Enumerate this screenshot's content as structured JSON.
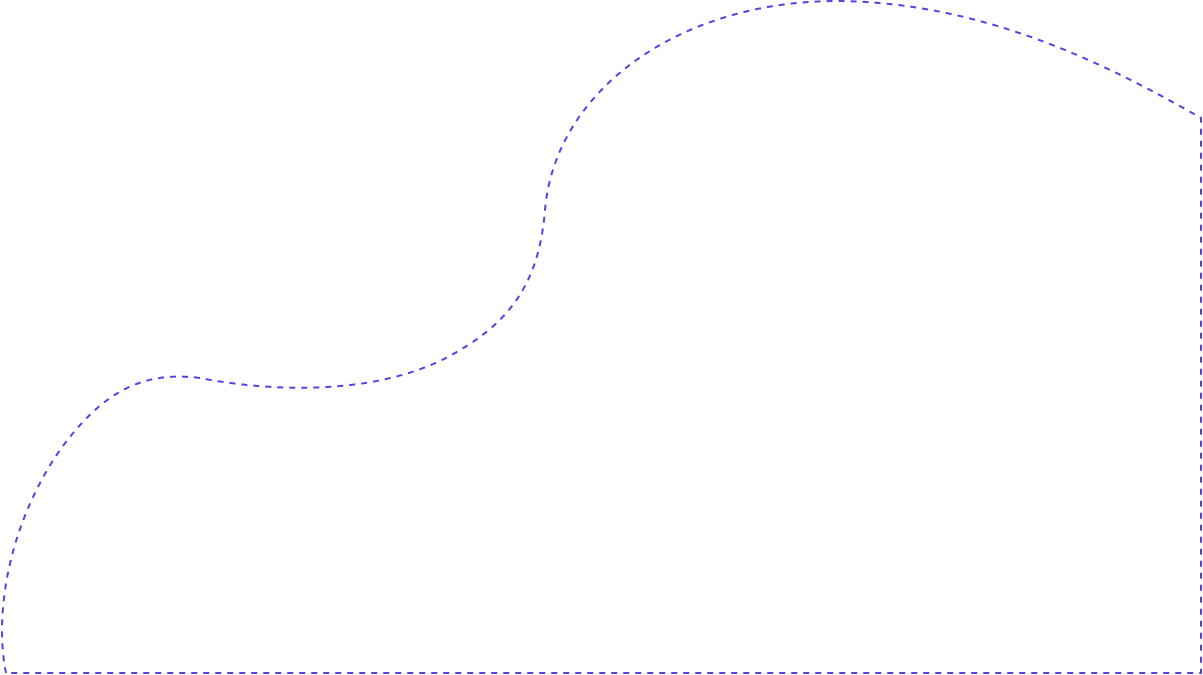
{
  "shape": {
    "stroke_color": "#5b3fe0",
    "fill_color": "#ffffff",
    "line_style": "dashed"
  }
}
